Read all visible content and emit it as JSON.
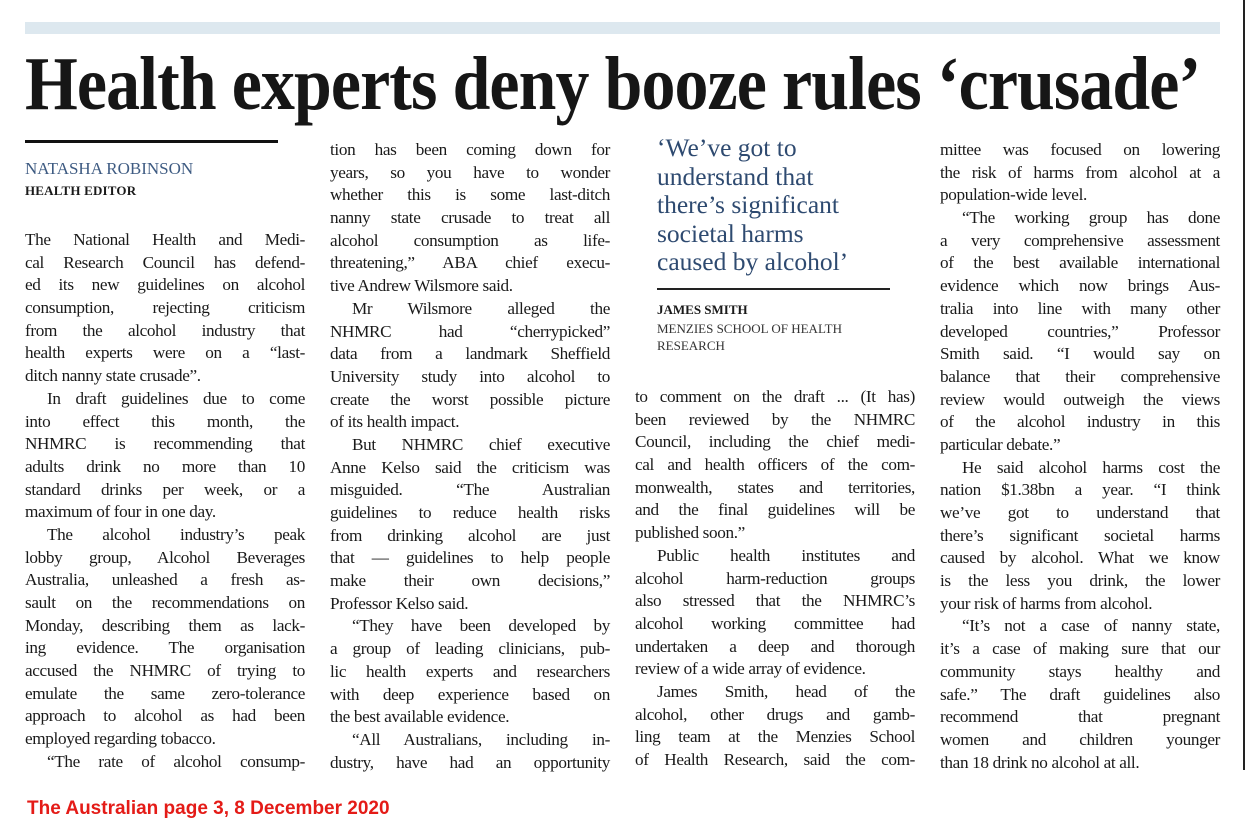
{
  "headline": "Health experts deny booze rules ‘crusade’",
  "byline": {
    "name": "NATASHA ROBINSON",
    "role": "HEALTH EDITOR"
  },
  "pull_quote": {
    "lines": [
      "‘We’ve got to",
      "understand that",
      "there’s significant",
      "societal harms",
      "caused by alcohol’"
    ],
    "name": "JAMES SMITH",
    "affiliation": [
      "MENZIES SCHOOL OF HEALTH",
      "RESEARCH"
    ]
  },
  "columns": [
    {
      "paragraphs": [
        [
          "The National Health and Medi-",
          "cal Research Council has defend-",
          "ed its new guidelines on alcohol",
          "consumption, rejecting criticism",
          "from the alcohol industry that",
          "health experts were on a “last-",
          "ditch nanny state crusade”."
        ],
        [
          "In draft guidelines due to come",
          "into effect this month, the",
          "NHMRC is recommending that",
          "adults drink no more than 10",
          "standard drinks per week, or a",
          "maximum of four in one day."
        ],
        [
          "The alcohol industry’s peak",
          "lobby group, Alcohol Beverages",
          "Australia, unleashed a fresh as-",
          "sault on the recommendations on",
          "Monday, describing them as lack-",
          "ing evidence. The organisation",
          "accused the NHMRC of trying to",
          "emulate the same zero-tolerance",
          "approach to alcohol as had been",
          "employed regarding tobacco."
        ],
        [
          "“The rate of alcohol consump-"
        ]
      ]
    },
    {
      "paragraphs": [
        [
          "tion has been coming down for",
          "years, so you have to wonder",
          "whether this is some last-ditch",
          "nanny state crusade to treat all",
          "alcohol consumption as life-",
          "threatening,” ABA chief execu-",
          "tive Andrew Wilsmore said."
        ],
        [
          "Mr Wilsmore alleged the",
          "NHMRC had “cherrypicked”",
          "data from a landmark Sheffield",
          "University study into alcohol to",
          "create the worst possible picture",
          "of its health impact."
        ],
        [
          "But NHMRC chief executive",
          "Anne Kelso said the criticism was",
          "misguided. “The Australian",
          "guidelines to reduce health risks",
          "from drinking alcohol are just",
          "that — guidelines to help people",
          "make their own decisions,”",
          "Professor Kelso said."
        ],
        [
          "“They have been developed by",
          "a group of leading clinicians, pub-",
          "lic health experts and researchers",
          "with deep experience based on",
          "the best available evidence."
        ],
        [
          "“All Australians, including in-",
          "dustry, have had an opportunity"
        ]
      ]
    },
    {
      "paragraphs": [
        [
          "to comment on the draft ... (It has)",
          "been reviewed by the NHMRC",
          "Council, including the chief medi-",
          "cal and health officers of the com-",
          "monwealth, states and territories,",
          "and the final guidelines will be",
          "published soon.”"
        ],
        [
          "Public health institutes and",
          "alcohol harm-reduction groups",
          "also stressed that the NHMRC’s",
          "alcohol working committee had",
          "undertaken a deep and thorough",
          "review of a wide array of evidence."
        ],
        [
          "James Smith, head of the",
          "alcohol, other drugs and gamb-",
          "ling team at the Menzies School",
          "of Health Research, said the com-"
        ]
      ]
    },
    {
      "paragraphs": [
        [
          "mittee was focused on lowering",
          "the risk of harms from alcohol at a",
          "population-wide level."
        ],
        [
          "“The working group has done",
          "a very comprehensive assessment",
          "of the best available international",
          "evidence which now brings Aus-",
          "tralia into line with many other",
          "developed countries,” Professor",
          "Smith said. “I would say on",
          "balance that their comprehensive",
          "review would outweigh the views",
          "of the alcohol industry in this",
          "particular debate.”"
        ],
        [
          "He said alcohol harms cost the",
          "nation $1.38bn a year. “I think",
          "we’ve got to understand that",
          "there’s significant societal harms",
          "caused by alcohol. What we know",
          "is the less you drink, the lower",
          "your risk of harms from alcohol."
        ],
        [
          "“It’s not a case of nanny state,",
          "it’s a case of making sure that our",
          "community stays healthy and",
          "safe.” The draft guidelines also",
          "recommend that pregnant",
          "women and children younger",
          "than 18 drink no alcohol at all."
        ]
      ]
    }
  ],
  "footer": "The Australian page 3, 8 December 2020",
  "colors": {
    "quote": "#2e4a70",
    "byline": "#3e5b82",
    "footer": "#e41b17",
    "top_bar": "#dde8ef"
  }
}
